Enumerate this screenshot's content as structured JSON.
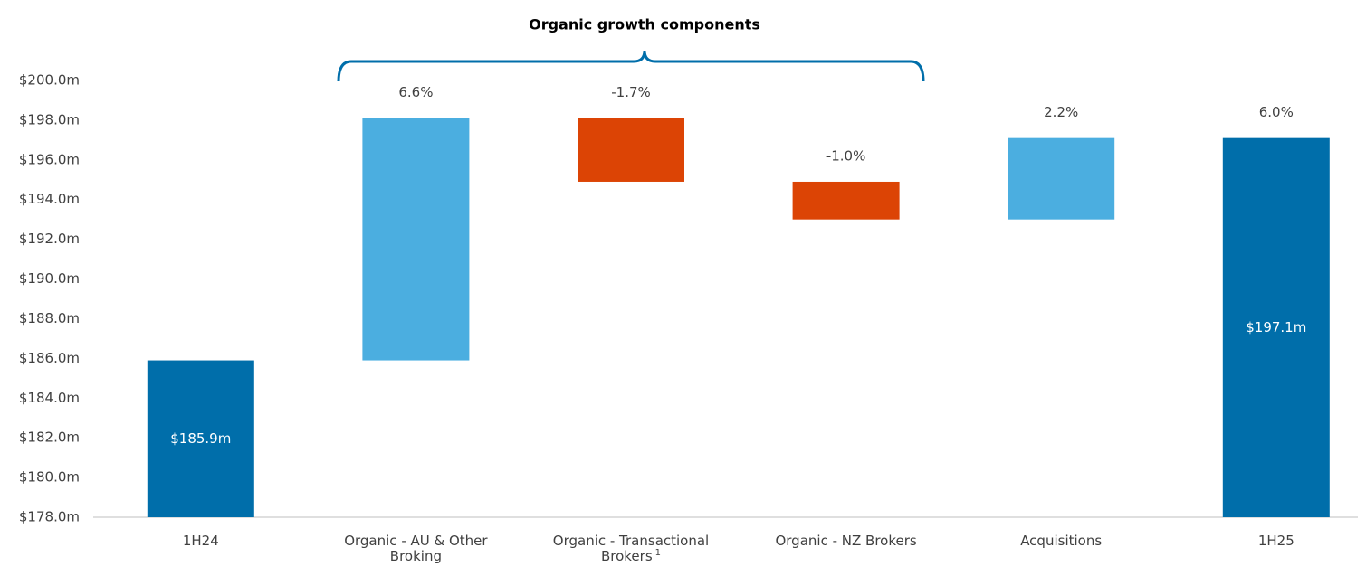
{
  "chart_data": {
    "type": "waterfall",
    "title": "Organic growth components",
    "categories": [
      "1H24",
      "Organic - AU & Other Broking",
      "Organic - Transactional Brokers",
      "Organic - NZ Brokers",
      "Acquisitions",
      "1H25"
    ],
    "category_notes": [
      null,
      null,
      "1",
      null,
      null,
      null
    ],
    "values": [
      185.9,
      12.2,
      -3.2,
      -1.9,
      4.1,
      197.1
    ],
    "value_labels": [
      "$185.9m",
      null,
      null,
      null,
      null,
      "$197.1m"
    ],
    "growth_labels": [
      null,
      "6.6%",
      "-1.7%",
      "-1.0%",
      "2.2%",
      "6.0%"
    ],
    "is_total": [
      true,
      false,
      false,
      false,
      false,
      true
    ],
    "colors": [
      "#006eaa",
      "#4baee0",
      "#dc4405",
      "#dc4405",
      "#4baee0",
      "#006eaa"
    ],
    "ylim": [
      178,
      200
    ],
    "yticks": [
      {
        "value": 178,
        "label": "$178.0m"
      },
      {
        "value": 180,
        "label": "$180.0m"
      },
      {
        "value": 182,
        "label": "$182.0m"
      },
      {
        "value": 184,
        "label": "$184.0m"
      },
      {
        "value": 186,
        "label": "$186.0m"
      },
      {
        "value": 188,
        "label": "$188.0m"
      },
      {
        "value": 190,
        "label": "$190.0m"
      },
      {
        "value": 192,
        "label": "$192.0m"
      },
      {
        "value": 194,
        "label": "$194.0m"
      },
      {
        "value": 196,
        "label": "$196.0m"
      },
      {
        "value": 198,
        "label": "$198.0m"
      },
      {
        "value": 200,
        "label": "$200.0m"
      }
    ],
    "grid": false
  }
}
